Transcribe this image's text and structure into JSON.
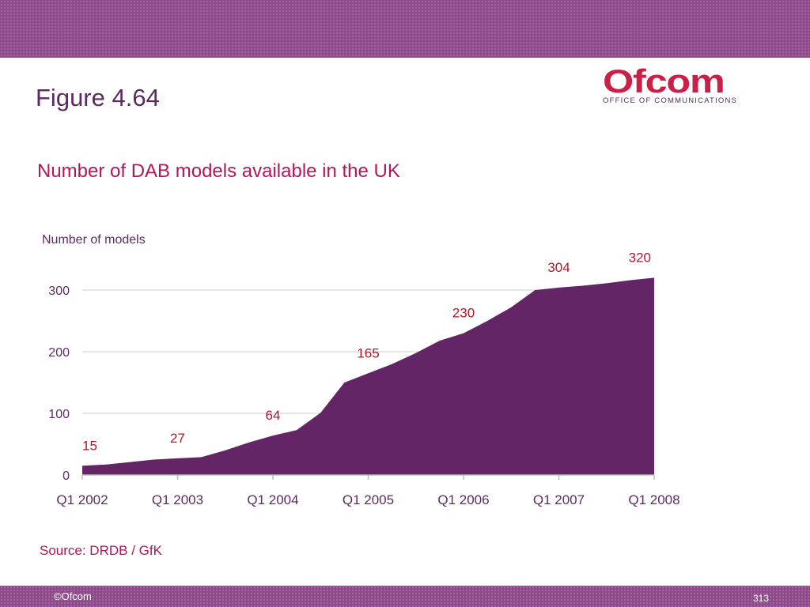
{
  "header": {
    "figure_label": "Figure 4.64",
    "logo_text": "Ofcom",
    "logo_subtext": "OFFICE OF COMMUNICATIONS"
  },
  "footer": {
    "source": "Source: DRDB / GfK",
    "copyright": "©Ofcom",
    "page_number": "313"
  },
  "colors": {
    "band": "#8e4a8a",
    "area_fill": "#632566",
    "title": "#b0185a",
    "data_label": "#b3162a"
  },
  "chart_data": {
    "type": "area",
    "title": "Number of DAB models available in the UK",
    "ylabel": "Number of models",
    "xlabel": "",
    "ylim": [
      0,
      300
    ],
    "yticks": [
      0,
      100,
      200,
      300
    ],
    "x_ticks": [
      "Q1 2002",
      "Q1 2003",
      "Q1 2004",
      "Q1 2005",
      "Q1 2006",
      "Q1 2007",
      "Q1 2008"
    ],
    "x_range": [
      0,
      24
    ],
    "series": [
      {
        "values": [
          {
            "x": 0,
            "y": 15
          },
          {
            "x": 1,
            "y": 17
          },
          {
            "x": 2,
            "y": 21
          },
          {
            "x": 3,
            "y": 25
          },
          {
            "x": 4,
            "y": 27
          },
          {
            "x": 5,
            "y": 29
          },
          {
            "x": 6,
            "y": 40
          },
          {
            "x": 7,
            "y": 53
          },
          {
            "x": 8,
            "y": 64
          },
          {
            "x": 9,
            "y": 73
          },
          {
            "x": 10,
            "y": 101
          },
          {
            "x": 11,
            "y": 150
          },
          {
            "x": 12,
            "y": 165
          },
          {
            "x": 13,
            "y": 180
          },
          {
            "x": 14,
            "y": 198
          },
          {
            "x": 15,
            "y": 218
          },
          {
            "x": 16,
            "y": 230
          },
          {
            "x": 17,
            "y": 250
          },
          {
            "x": 18,
            "y": 272
          },
          {
            "x": 19,
            "y": 300
          },
          {
            "x": 20,
            "y": 304
          },
          {
            "x": 21,
            "y": 307
          },
          {
            "x": 22,
            "y": 311
          },
          {
            "x": 23,
            "y": 316
          },
          {
            "x": 24,
            "y": 320
          }
        ]
      }
    ],
    "data_labels": [
      {
        "x": 0,
        "y": 15,
        "text": "15"
      },
      {
        "x": 4,
        "y": 27,
        "text": "27"
      },
      {
        "x": 8,
        "y": 64,
        "text": "64"
      },
      {
        "x": 12,
        "y": 165,
        "text": "165"
      },
      {
        "x": 16,
        "y": 230,
        "text": "230"
      },
      {
        "x": 20,
        "y": 304,
        "text": "304"
      },
      {
        "x": 24,
        "y": 320,
        "text": "320"
      }
    ],
    "grid": true,
    "legend": "none"
  }
}
